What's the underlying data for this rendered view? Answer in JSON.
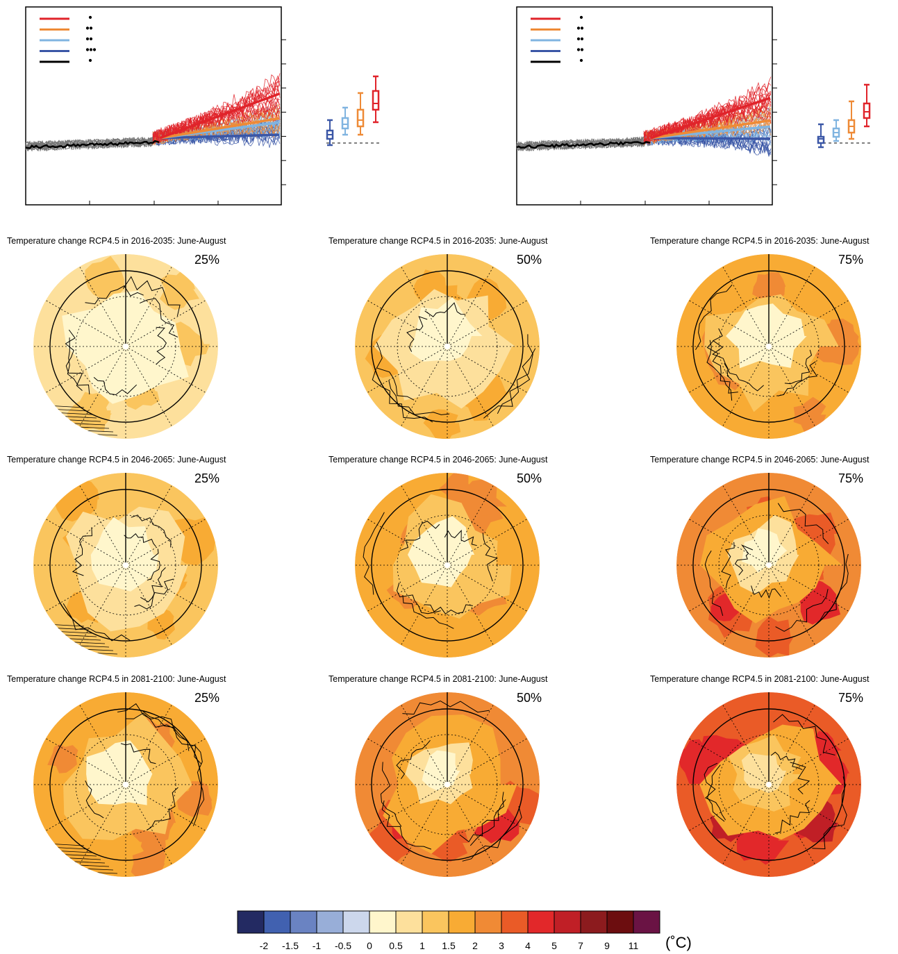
{
  "palette": {
    "rcp85": "#e0232a",
    "rcp60": "#ee8a36",
    "rcp45": "#80b4e0",
    "rcp26": "#3a56a6",
    "historical": "#000000",
    "hist_ensemble": "#777777"
  },
  "maps": [
    {
      "title": "Temperature change RCP4.5 in 2016-2035: June-August",
      "pct": "25%",
      "level": 0
    },
    {
      "title": "Temperature change RCP4.5 in 2016-2035: June-August",
      "pct": "50%",
      "level": 1
    },
    {
      "title": "Temperature change RCP4.5 in 2016-2035: June-August",
      "pct": "75%",
      "level": 2
    },
    {
      "title": "Temperature change RCP4.5 in 2046-2065: June-August",
      "pct": "25%",
      "level": 1
    },
    {
      "title": "Temperature change RCP4.5 in 2046-2065: June-August",
      "pct": "50%",
      "level": 2
    },
    {
      "title": "Temperature change RCP4.5 in 2046-2065: June-August",
      "pct": "75%",
      "level": 3
    },
    {
      "title": "Temperature change RCP4.5 in 2081-2100: June-August",
      "pct": "25%",
      "level": 2
    },
    {
      "title": "Temperature change RCP4.5 in 2081-2100: June-August",
      "pct": "50%",
      "level": 3
    },
    {
      "title": "Temperature change RCP4.5 in 2081-2100: June-August",
      "pct": "75%",
      "level": 4
    }
  ],
  "colorbar": {
    "unit": "(˚C)",
    "colors": [
      "#232a62",
      "#4161b0",
      "#6a83c2",
      "#98aed8",
      "#ccd7ec",
      "#fff6cc",
      "#fde09c",
      "#fac55e",
      "#f8ab34",
      "#f08a35",
      "#ea5b27",
      "#e2282a",
      "#c01f26",
      "#8c1b1e",
      "#6c0d0f",
      "#6a1344"
    ],
    "labels": [
      "-2",
      "-1.5",
      "-1",
      "-0.5",
      "0",
      "0.5",
      "1",
      "1.5",
      "2",
      "3",
      "4",
      "5",
      "7",
      "9",
      "11"
    ]
  },
  "chart_data": [
    {
      "type": "line",
      "panel": "left time series",
      "series": [
        {
          "color_key": "rcp85",
          "dot_count": 1,
          "end_anomaly": 1.2
        },
        {
          "color_key": "rcp60",
          "dot_count": 2,
          "end_anomaly": 0.6
        },
        {
          "color_key": "rcp45",
          "dot_count": 2,
          "end_anomaly": 0.5
        },
        {
          "color_key": "rcp26",
          "dot_count": 3,
          "end_anomaly": 0.2
        },
        {
          "color_key": "historical",
          "dot_count": 1
        }
      ],
      "boxes": [
        {
          "color_key": "rcp26",
          "low": -0.05,
          "q1": 0.1,
          "median": 0.2,
          "q3": 0.3,
          "high": 0.55
        },
        {
          "color_key": "rcp45",
          "low": 0.2,
          "q1": 0.35,
          "median": 0.45,
          "q3": 0.6,
          "high": 0.85
        },
        {
          "color_key": "rcp60",
          "low": 0.2,
          "q1": 0.4,
          "median": 0.55,
          "q3": 0.8,
          "high": 1.2
        },
        {
          "color_key": "rcp85",
          "low": 0.5,
          "q1": 0.8,
          "median": 0.95,
          "q3": 1.25,
          "high": 1.6
        }
      ]
    },
    {
      "type": "line",
      "panel": "right time series",
      "series": [
        {
          "color_key": "rcp85",
          "dot_count": 1,
          "end_anomaly": 1.1
        },
        {
          "color_key": "rcp60",
          "dot_count": 2,
          "end_anomaly": 0.55
        },
        {
          "color_key": "rcp45",
          "dot_count": 2,
          "end_anomaly": 0.4
        },
        {
          "color_key": "rcp26",
          "dot_count": 2,
          "end_anomaly": 0.1
        },
        {
          "color_key": "historical",
          "dot_count": 1
        }
      ],
      "boxes": [
        {
          "color_key": "rcp26",
          "low": -0.1,
          "q1": 0.0,
          "median": 0.1,
          "q3": 0.15,
          "high": 0.45
        },
        {
          "color_key": "rcp45",
          "low": 0.05,
          "q1": 0.15,
          "median": 0.25,
          "q3": 0.35,
          "high": 0.55
        },
        {
          "color_key": "rcp60",
          "low": 0.1,
          "q1": 0.25,
          "median": 0.4,
          "q3": 0.55,
          "high": 1.0
        },
        {
          "color_key": "rcp85",
          "low": 0.4,
          "q1": 0.6,
          "median": 0.75,
          "q3": 0.95,
          "high": 1.4
        }
      ]
    }
  ]
}
